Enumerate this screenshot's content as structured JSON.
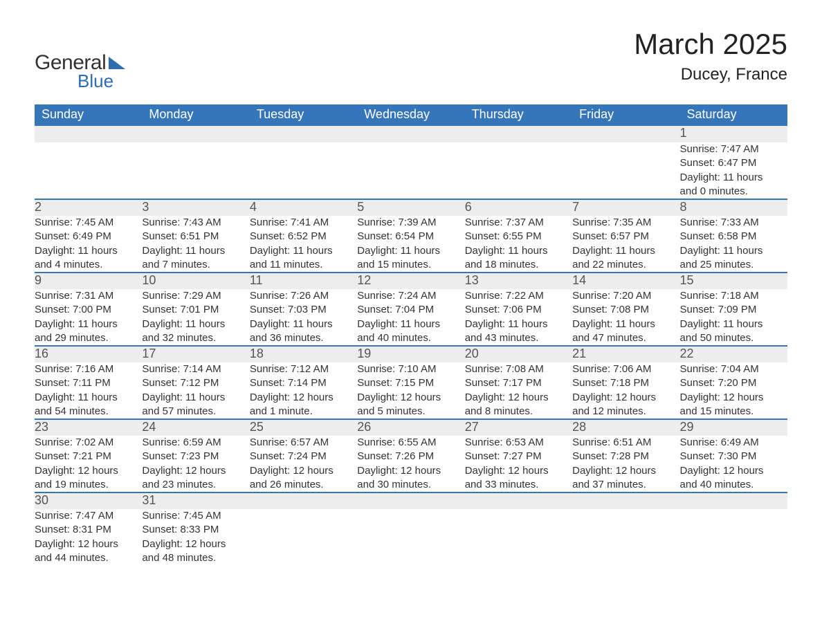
{
  "brand": {
    "word1": "General",
    "word2": "Blue",
    "accent_color": "#2d6cb0"
  },
  "title": "March 2025",
  "location": "Ducey, France",
  "theme": {
    "header_bg": "#3576bb",
    "header_text": "#ffffff",
    "daynum_bg": "#ededed",
    "row_divider": "#3576bb",
    "body_text": "#333333",
    "page_bg": "#ffffff",
    "title_fontsize": 42,
    "location_fontsize": 24,
    "weekday_fontsize": 18,
    "data_fontsize": 15
  },
  "weekdays": [
    "Sunday",
    "Monday",
    "Tuesday",
    "Wednesday",
    "Thursday",
    "Friday",
    "Saturday"
  ],
  "weeks": [
    [
      null,
      null,
      null,
      null,
      null,
      null,
      {
        "day": "1",
        "sunrise": "Sunrise: 7:47 AM",
        "sunset": "Sunset: 6:47 PM",
        "daylight1": "Daylight: 11 hours",
        "daylight2": "and 0 minutes."
      }
    ],
    [
      {
        "day": "2",
        "sunrise": "Sunrise: 7:45 AM",
        "sunset": "Sunset: 6:49 PM",
        "daylight1": "Daylight: 11 hours",
        "daylight2": "and 4 minutes."
      },
      {
        "day": "3",
        "sunrise": "Sunrise: 7:43 AM",
        "sunset": "Sunset: 6:51 PM",
        "daylight1": "Daylight: 11 hours",
        "daylight2": "and 7 minutes."
      },
      {
        "day": "4",
        "sunrise": "Sunrise: 7:41 AM",
        "sunset": "Sunset: 6:52 PM",
        "daylight1": "Daylight: 11 hours",
        "daylight2": "and 11 minutes."
      },
      {
        "day": "5",
        "sunrise": "Sunrise: 7:39 AM",
        "sunset": "Sunset: 6:54 PM",
        "daylight1": "Daylight: 11 hours",
        "daylight2": "and 15 minutes."
      },
      {
        "day": "6",
        "sunrise": "Sunrise: 7:37 AM",
        "sunset": "Sunset: 6:55 PM",
        "daylight1": "Daylight: 11 hours",
        "daylight2": "and 18 minutes."
      },
      {
        "day": "7",
        "sunrise": "Sunrise: 7:35 AM",
        "sunset": "Sunset: 6:57 PM",
        "daylight1": "Daylight: 11 hours",
        "daylight2": "and 22 minutes."
      },
      {
        "day": "8",
        "sunrise": "Sunrise: 7:33 AM",
        "sunset": "Sunset: 6:58 PM",
        "daylight1": "Daylight: 11 hours",
        "daylight2": "and 25 minutes."
      }
    ],
    [
      {
        "day": "9",
        "sunrise": "Sunrise: 7:31 AM",
        "sunset": "Sunset: 7:00 PM",
        "daylight1": "Daylight: 11 hours",
        "daylight2": "and 29 minutes."
      },
      {
        "day": "10",
        "sunrise": "Sunrise: 7:29 AM",
        "sunset": "Sunset: 7:01 PM",
        "daylight1": "Daylight: 11 hours",
        "daylight2": "and 32 minutes."
      },
      {
        "day": "11",
        "sunrise": "Sunrise: 7:26 AM",
        "sunset": "Sunset: 7:03 PM",
        "daylight1": "Daylight: 11 hours",
        "daylight2": "and 36 minutes."
      },
      {
        "day": "12",
        "sunrise": "Sunrise: 7:24 AM",
        "sunset": "Sunset: 7:04 PM",
        "daylight1": "Daylight: 11 hours",
        "daylight2": "and 40 minutes."
      },
      {
        "day": "13",
        "sunrise": "Sunrise: 7:22 AM",
        "sunset": "Sunset: 7:06 PM",
        "daylight1": "Daylight: 11 hours",
        "daylight2": "and 43 minutes."
      },
      {
        "day": "14",
        "sunrise": "Sunrise: 7:20 AM",
        "sunset": "Sunset: 7:08 PM",
        "daylight1": "Daylight: 11 hours",
        "daylight2": "and 47 minutes."
      },
      {
        "day": "15",
        "sunrise": "Sunrise: 7:18 AM",
        "sunset": "Sunset: 7:09 PM",
        "daylight1": "Daylight: 11 hours",
        "daylight2": "and 50 minutes."
      }
    ],
    [
      {
        "day": "16",
        "sunrise": "Sunrise: 7:16 AM",
        "sunset": "Sunset: 7:11 PM",
        "daylight1": "Daylight: 11 hours",
        "daylight2": "and 54 minutes."
      },
      {
        "day": "17",
        "sunrise": "Sunrise: 7:14 AM",
        "sunset": "Sunset: 7:12 PM",
        "daylight1": "Daylight: 11 hours",
        "daylight2": "and 57 minutes."
      },
      {
        "day": "18",
        "sunrise": "Sunrise: 7:12 AM",
        "sunset": "Sunset: 7:14 PM",
        "daylight1": "Daylight: 12 hours",
        "daylight2": "and 1 minute."
      },
      {
        "day": "19",
        "sunrise": "Sunrise: 7:10 AM",
        "sunset": "Sunset: 7:15 PM",
        "daylight1": "Daylight: 12 hours",
        "daylight2": "and 5 minutes."
      },
      {
        "day": "20",
        "sunrise": "Sunrise: 7:08 AM",
        "sunset": "Sunset: 7:17 PM",
        "daylight1": "Daylight: 12 hours",
        "daylight2": "and 8 minutes."
      },
      {
        "day": "21",
        "sunrise": "Sunrise: 7:06 AM",
        "sunset": "Sunset: 7:18 PM",
        "daylight1": "Daylight: 12 hours",
        "daylight2": "and 12 minutes."
      },
      {
        "day": "22",
        "sunrise": "Sunrise: 7:04 AM",
        "sunset": "Sunset: 7:20 PM",
        "daylight1": "Daylight: 12 hours",
        "daylight2": "and 15 minutes."
      }
    ],
    [
      {
        "day": "23",
        "sunrise": "Sunrise: 7:02 AM",
        "sunset": "Sunset: 7:21 PM",
        "daylight1": "Daylight: 12 hours",
        "daylight2": "and 19 minutes."
      },
      {
        "day": "24",
        "sunrise": "Sunrise: 6:59 AM",
        "sunset": "Sunset: 7:23 PM",
        "daylight1": "Daylight: 12 hours",
        "daylight2": "and 23 minutes."
      },
      {
        "day": "25",
        "sunrise": "Sunrise: 6:57 AM",
        "sunset": "Sunset: 7:24 PM",
        "daylight1": "Daylight: 12 hours",
        "daylight2": "and 26 minutes."
      },
      {
        "day": "26",
        "sunrise": "Sunrise: 6:55 AM",
        "sunset": "Sunset: 7:26 PM",
        "daylight1": "Daylight: 12 hours",
        "daylight2": "and 30 minutes."
      },
      {
        "day": "27",
        "sunrise": "Sunrise: 6:53 AM",
        "sunset": "Sunset: 7:27 PM",
        "daylight1": "Daylight: 12 hours",
        "daylight2": "and 33 minutes."
      },
      {
        "day": "28",
        "sunrise": "Sunrise: 6:51 AM",
        "sunset": "Sunset: 7:28 PM",
        "daylight1": "Daylight: 12 hours",
        "daylight2": "and 37 minutes."
      },
      {
        "day": "29",
        "sunrise": "Sunrise: 6:49 AM",
        "sunset": "Sunset: 7:30 PM",
        "daylight1": "Daylight: 12 hours",
        "daylight2": "and 40 minutes."
      }
    ],
    [
      {
        "day": "30",
        "sunrise": "Sunrise: 7:47 AM",
        "sunset": "Sunset: 8:31 PM",
        "daylight1": "Daylight: 12 hours",
        "daylight2": "and 44 minutes."
      },
      {
        "day": "31",
        "sunrise": "Sunrise: 7:45 AM",
        "sunset": "Sunset: 8:33 PM",
        "daylight1": "Daylight: 12 hours",
        "daylight2": "and 48 minutes."
      },
      null,
      null,
      null,
      null,
      null
    ]
  ]
}
